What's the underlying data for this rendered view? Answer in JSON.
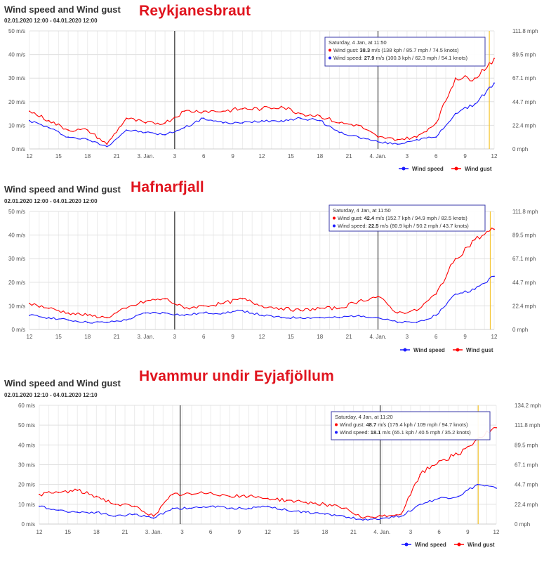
{
  "colors": {
    "speed": "#1a1aff",
    "gust": "#ff0000",
    "marker": "#000000",
    "now": "#f4c430",
    "tooltip_border": "#3a3aaa"
  },
  "charts": [
    {
      "title": "Wind speed and Wind gust",
      "subtitle": "02.01.2020 12:00 - 04.01.2020 12:00",
      "station": "Reykjanesbraut",
      "y_left_ticks": [
        "50 m/s",
        "40 m/s",
        "30 m/s",
        "20 m/s",
        "10 m/s",
        "0 m/s"
      ],
      "y_right_ticks": [
        "111.8 mph",
        "89.5 mph",
        "67.1 mph",
        "44.7 mph",
        "22.4 mph",
        "0 mph"
      ],
      "x_ticks": [
        "12",
        "15",
        "18",
        "21",
        "3. Jan.",
        "3",
        "6",
        "9",
        "12",
        "15",
        "18",
        "21",
        "4. Jan.",
        "3",
        "6",
        "9",
        "12"
      ],
      "tooltip": {
        "header": "Saturday, 4 Jan, at 11:50",
        "gust_label": "Wind gust: ",
        "gust_value": "38.3",
        "gust_rest": " m/s (138 kph / 85.7 mph / 74.5 knots)",
        "speed_label": "Wind speed: ",
        "speed_value": "27.9",
        "speed_rest": " m/s (100.3 kph / 62.3 mph / 54.1 knots)"
      },
      "legend": {
        "speed": "Wind speed",
        "gust": "Wind gust"
      }
    },
    {
      "title": "Wind speed and Wind gust",
      "subtitle": "02.01.2020 12:00 - 04.01.2020 12:00",
      "station": "Hafnarfjall",
      "y_left_ticks": [
        "50 m/s",
        "40 m/s",
        "30 m/s",
        "20 m/s",
        "10 m/s",
        "0 m/s"
      ],
      "y_right_ticks": [
        "111.8 mph",
        "89.5 mph",
        "67.1 mph",
        "44.7 mph",
        "22.4 mph",
        "0 mph"
      ],
      "x_ticks": [
        "12",
        "15",
        "18",
        "21",
        "3. Jan.",
        "3",
        "6",
        "9",
        "12",
        "15",
        "18",
        "21",
        "4. Jan.",
        "3",
        "6",
        "9",
        "12"
      ],
      "tooltip": {
        "header": "Saturday, 4 Jan, at 11:50",
        "gust_label": "Wind gust: ",
        "gust_value": "42.4",
        "gust_rest": " m/s (152.7 kph / 94.9 mph / 82.5 knots)",
        "speed_label": "Wind speed: ",
        "speed_value": "22.5",
        "speed_rest": " m/s (80.9 kph / 50.2 mph / 43.7 knots)"
      },
      "legend": {
        "speed": "Wind speed",
        "gust": "Wind gust"
      }
    },
    {
      "title": "Wind speed and Wind gust",
      "subtitle": "02.01.2020 12:10 - 04.01.2020 12:10",
      "station": "Hvammur undir Eyjafjöllum",
      "y_left_ticks": [
        "60 m/s",
        "50 m/s",
        "40 m/s",
        "30 m/s",
        "20 m/s",
        "10 m/s",
        "0 m/s"
      ],
      "y_right_ticks": [
        "134.2 mph",
        "111.8 mph",
        "89.5 mph",
        "67.1 mph",
        "44.7 mph",
        "22.4 mph",
        "0 mph"
      ],
      "x_ticks": [
        "12",
        "15",
        "18",
        "21",
        "3. Jan.",
        "3",
        "6",
        "9",
        "12",
        "15",
        "18",
        "21",
        "4. Jan.",
        "3",
        "6",
        "9",
        "12"
      ],
      "tooltip": {
        "header": "Saturday, 4 Jan, at 11:20",
        "gust_label": "Wind gust: ",
        "gust_value": "48.7",
        "gust_rest": " m/s (175.4 kph / 109 mph / 94.7 knots)",
        "speed_label": "Wind speed: ",
        "speed_value": "18.1",
        "speed_rest": " m/s (65.1 kph / 40.5 mph / 35.2 knots)"
      },
      "legend": {
        "speed": "Wind speed",
        "gust": "Wind gust"
      }
    }
  ],
  "chart_data": [
    {
      "type": "line",
      "x_hours": [
        0,
        2,
        4,
        6,
        8,
        10,
        12,
        14,
        16,
        18,
        20,
        22,
        24,
        26,
        28,
        30,
        32,
        34,
        36,
        38,
        40,
        42,
        44,
        46,
        48
      ],
      "x_tick_hours": [
        0,
        3,
        6,
        9,
        12,
        15,
        18,
        21,
        24,
        27,
        30,
        33,
        36,
        39,
        42,
        45,
        48
      ],
      "ylim": [
        0,
        50
      ],
      "markers_hours": [
        15,
        36
      ],
      "series": [
        {
          "name": "Wind speed",
          "color": "#1a1aff",
          "values": [
            12,
            9,
            5,
            4,
            1,
            8,
            7,
            6,
            9,
            13,
            11,
            11,
            12,
            12,
            13,
            12,
            7,
            5,
            3,
            2,
            4,
            5,
            15,
            19,
            27.9
          ]
        },
        {
          "name": "Wind gust",
          "color": "#ff0000",
          "values": [
            16,
            12,
            8,
            8,
            2,
            13,
            11,
            11,
            16,
            16,
            16,
            17,
            17,
            18,
            15,
            14,
            11,
            10,
            5,
            4,
            5,
            11,
            30,
            30,
            38.3
          ]
        }
      ]
    },
    {
      "type": "line",
      "x_hours": [
        0,
        2,
        4,
        6,
        8,
        10,
        12,
        14,
        16,
        18,
        20,
        22,
        24,
        26,
        28,
        30,
        32,
        34,
        36,
        38,
        40,
        42,
        44,
        46,
        48
      ],
      "x_tick_hours": [
        0,
        3,
        6,
        9,
        12,
        15,
        18,
        21,
        24,
        27,
        30,
        33,
        36,
        39,
        42,
        45,
        48
      ],
      "ylim": [
        0,
        50
      ],
      "markers_hours": [
        15,
        36
      ],
      "series": [
        {
          "name": "Wind speed",
          "color": "#1a1aff",
          "values": [
            6,
            5,
            4,
            3,
            3,
            4,
            7,
            7,
            6,
            7,
            7,
            8,
            6,
            5,
            5,
            5,
            5,
            6,
            5,
            3,
            3,
            6,
            15,
            17,
            22.5
          ]
        },
        {
          "name": "Wind gust",
          "color": "#ff0000",
          "values": [
            11,
            9,
            7,
            6,
            5,
            9,
            12,
            13,
            9,
            10,
            11,
            13,
            10,
            9,
            8,
            9,
            9,
            12,
            14,
            7,
            8,
            15,
            30,
            38,
            42.4
          ]
        }
      ]
    },
    {
      "type": "line",
      "x_hours": [
        0,
        2,
        4,
        6,
        8,
        10,
        12,
        14,
        16,
        18,
        20,
        22,
        24,
        26,
        28,
        30,
        32,
        34,
        36,
        38,
        40,
        42,
        44,
        46,
        48
      ],
      "x_tick_hours": [
        0,
        3,
        6,
        9,
        12,
        15,
        18,
        21,
        24,
        27,
        30,
        33,
        36,
        39,
        42,
        45,
        48
      ],
      "ylim": [
        0,
        60
      ],
      "markers_hours": [
        14.8,
        35.8
      ],
      "series": [
        {
          "name": "Wind speed",
          "color": "#1a1aff",
          "values": [
            9,
            7,
            6,
            6,
            4,
            5,
            3,
            8,
            8,
            9,
            8,
            8,
            9,
            7,
            6,
            5,
            4,
            2,
            3,
            4,
            10,
            13,
            14,
            20,
            18.1
          ]
        },
        {
          "name": "Wind gust",
          "color": "#ff0000",
          "values": [
            15,
            16,
            17,
            14,
            10,
            9,
            4,
            15,
            15,
            16,
            14,
            14,
            13,
            12,
            11,
            10,
            8,
            3,
            4,
            5,
            25,
            32,
            35,
            43,
            48.7
          ]
        }
      ]
    }
  ]
}
